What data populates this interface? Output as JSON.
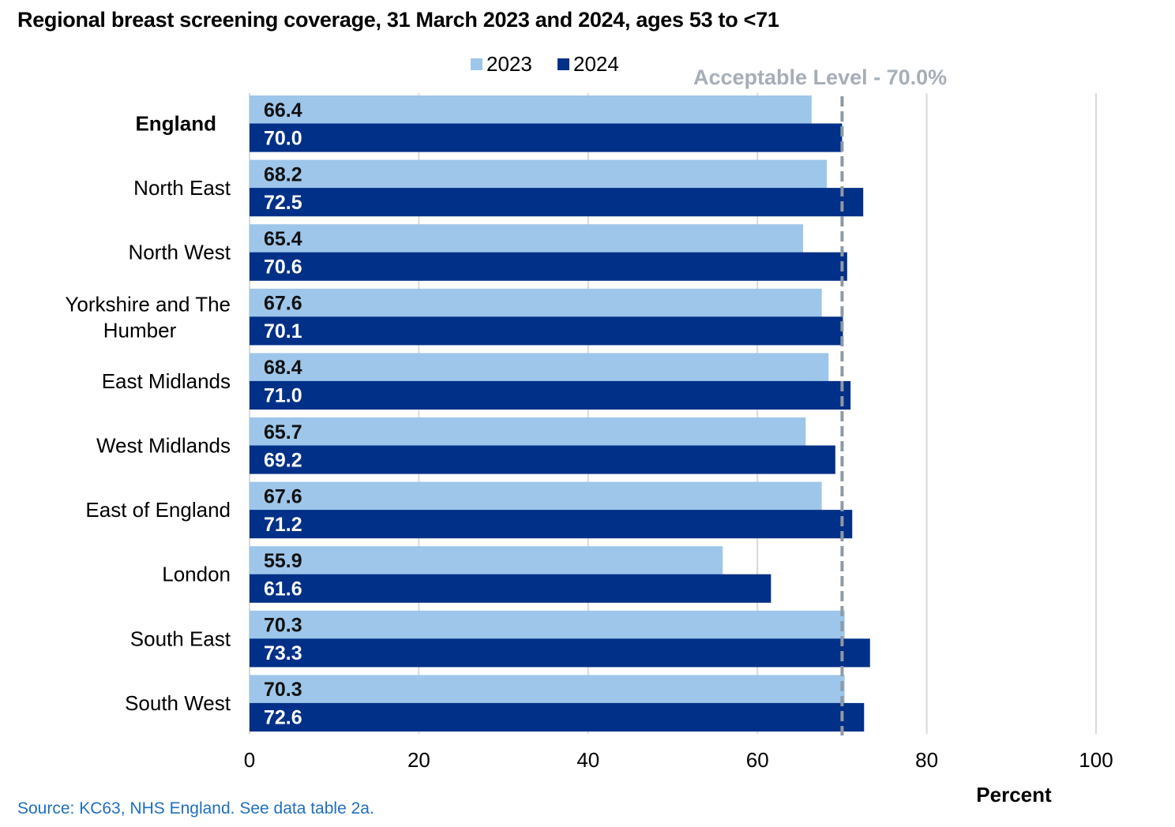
{
  "title": "Regional breast screening coverage, 31 March 2023 and 2024, ages 53 to <71",
  "source": "Source: KC63, NHS England. See data table 2a.",
  "chart_data": {
    "type": "bar",
    "orientation": "horizontal",
    "categories": [
      "England",
      "North East",
      "North West",
      "Yorkshire and The Humber",
      "East Midlands",
      "West Midlands",
      "East of England",
      "London",
      "South East",
      "South West"
    ],
    "category_lines": [
      [
        "England"
      ],
      [
        "North East"
      ],
      [
        "North West"
      ],
      [
        "Yorkshire and The",
        "Humber"
      ],
      [
        "East Midlands"
      ],
      [
        "West Midlands"
      ],
      [
        "East of England"
      ],
      [
        "London"
      ],
      [
        "South East"
      ],
      [
        "South West"
      ]
    ],
    "series": [
      {
        "name": "2023",
        "color": "#9dc6ea",
        "label_color": "#111111",
        "values": [
          66.4,
          68.2,
          65.4,
          67.6,
          68.4,
          65.7,
          67.6,
          55.9,
          70.3,
          70.3
        ],
        "labels": [
          "66.4",
          "68.2",
          "65.4",
          "67.6",
          "68.4",
          "65.7",
          "67.6",
          "55.9",
          "70.3",
          "70.3"
        ]
      },
      {
        "name": "2024",
        "color": "#003087",
        "label_color": "#ffffff",
        "values": [
          70.0,
          72.5,
          70.6,
          70.1,
          71.0,
          69.2,
          71.2,
          61.6,
          73.3,
          72.6
        ],
        "labels": [
          "70.0",
          "72.5",
          "70.6",
          "70.1",
          "71.0",
          "69.2",
          "71.2",
          "61.6",
          "73.3",
          "72.6"
        ]
      }
    ],
    "xlabel": "Percent",
    "xlim": [
      0,
      100
    ],
    "xticks": [
      0,
      20,
      40,
      60,
      80,
      100
    ],
    "xtick_labels": [
      "0",
      "20",
      "40",
      "60",
      "80",
      "100"
    ],
    "reference_line": {
      "value": 70.0,
      "label": "Acceptable Level - 70.0%",
      "style": "dashed",
      "color": "#8e99a6"
    },
    "bold_categories": [
      "England"
    ],
    "grid": "vertical",
    "legend_position": "top"
  }
}
